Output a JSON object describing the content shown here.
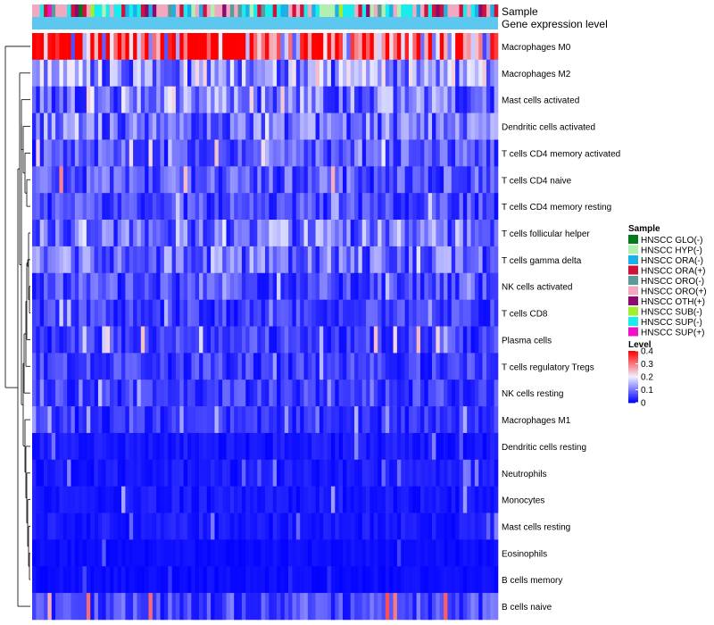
{
  "chart_data": {
    "type": "heatmap",
    "title": "",
    "annotation_tracks": [
      "Sample",
      "Gene expression level"
    ],
    "rows": [
      "Macrophages M0",
      "Macrophages M2",
      "Mast cells activated",
      "Dendritic cells activated",
      "T cells CD4 memory activated",
      "T cells CD4 naive",
      "T cells CD4 memory resting",
      "T cells follicular helper",
      "T cells gamma delta",
      "NK cells activated",
      "T cells CD8",
      "Plasma cells",
      "T cells regulatory  Tregs",
      "NK cells resting",
      "Macrophages M1",
      "Dendritic cells resting",
      "Neutrophils",
      "Monocytes",
      "Mast cells resting",
      "Eosinophils",
      "B cells memory",
      "B cells naive"
    ],
    "row_mean_level": [
      0.35,
      0.12,
      0.1,
      0.09,
      0.07,
      0.07,
      0.06,
      0.1,
      0.09,
      0.06,
      0.05,
      0.05,
      0.05,
      0.05,
      0.04,
      0.02,
      0.02,
      0.02,
      0.02,
      0.01,
      0.01,
      0.06
    ],
    "row_peak_level": [
      0.4,
      0.25,
      0.25,
      0.22,
      0.25,
      0.4,
      0.18,
      0.2,
      0.2,
      0.18,
      0.2,
      0.25,
      0.2,
      0.18,
      0.15,
      0.12,
      0.12,
      0.15,
      0.12,
      0.08,
      0.06,
      0.4
    ],
    "n_samples": 120,
    "color_scale": {
      "title": "Level",
      "min": 0,
      "max": 0.4,
      "ticks": [
        0.4,
        0.3,
        0.2,
        0.1,
        0
      ],
      "colors": [
        "#0000ff",
        "#f0f0ff",
        "#ff0000"
      ]
    },
    "sample_legend": {
      "title": "Sample",
      "items": [
        {
          "label": "HNSCC GLO(-)",
          "color": "#007a1a"
        },
        {
          "label": "HNSCC HYP(-)",
          "color": "#b0f0b0"
        },
        {
          "label": "HNSCC ORA(-)",
          "color": "#1ab0e8"
        },
        {
          "label": "HNSCC ORA(+)",
          "color": "#d0123a"
        },
        {
          "label": "HNSCC ORO(-)",
          "color": "#5a9a9a"
        },
        {
          "label": "HNSCC ORO(+)",
          "color": "#f2a8be"
        },
        {
          "label": "HNSCC OTH(+)",
          "color": "#8a0a70"
        },
        {
          "label": "HNSCC SUB(-)",
          "color": "#a0f030"
        },
        {
          "label": "HNSCC SUP(-)",
          "color": "#18ecec"
        },
        {
          "label": "HNSCC SUP(+)",
          "color": "#f010c8"
        }
      ]
    },
    "expression_track_color": "#5cc8f0"
  }
}
